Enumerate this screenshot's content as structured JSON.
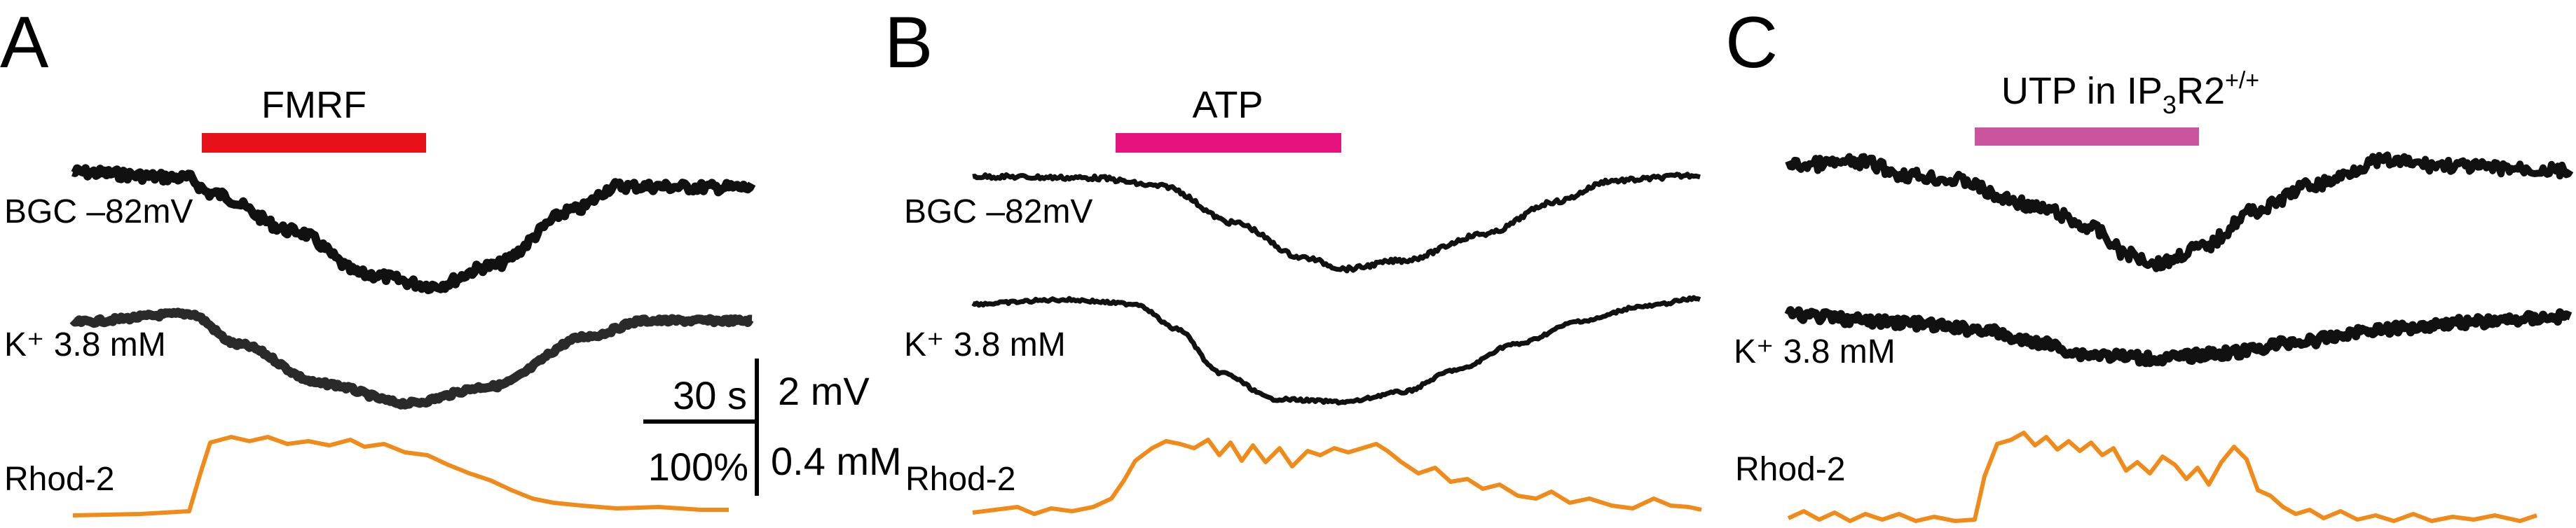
{
  "colors": {
    "fmrf_bar": "#e8111a",
    "atp_bar": "#e6127d",
    "utp_bar": "#c8559e",
    "trace": "#111111",
    "rhod2": "#f08a18"
  },
  "panels": [
    {
      "letter": "A",
      "stimulus": "FMRF",
      "labels": {
        "bgc": "BGC –82mV",
        "k": "K⁺ 3.8 mM",
        "rhod": "Rhod-2"
      }
    },
    {
      "letter": "B",
      "stimulus": "ATP",
      "labels": {
        "bgc": "BGC –82mV",
        "k": "K⁺ 3.8 mM",
        "rhod": "Rhod-2"
      }
    },
    {
      "letter": "C",
      "stimulus_main": "UTP in IP",
      "stimulus_sub": "3",
      "stimulus_mid": "R2",
      "stimulus_sup": "+/+",
      "labels": {
        "k": "K⁺ 3.8 mM",
        "rhod": "Rhod-2"
      }
    }
  ],
  "scale_bar": {
    "time": "30 s",
    "voltage": "2 mV",
    "percent": "100%",
    "concentration": "0.4 mM"
  }
}
